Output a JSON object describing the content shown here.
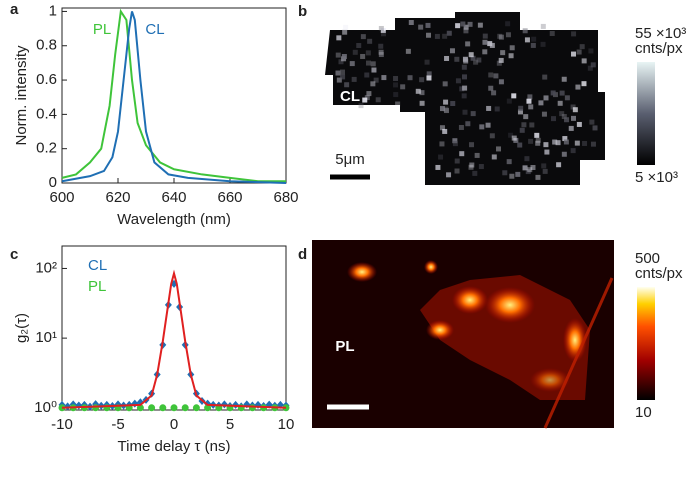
{
  "chart_data": [
    {
      "type": "line",
      "panel": "a",
      "xlabel": "Wavelength (nm)",
      "ylabel": "Norm. intensity",
      "xlim": [
        600,
        680
      ],
      "xticks": [
        600,
        620,
        640,
        660,
        680
      ],
      "ylim": [
        0,
        1.02
      ],
      "yticks": [
        0,
        0.2,
        0.4,
        0.6,
        0.8,
        1
      ],
      "series": [
        {
          "name": "PL",
          "color": "#3fc43a",
          "x": [
            600,
            605,
            610,
            614,
            617,
            619,
            621,
            623,
            625,
            627,
            630,
            635,
            640,
            650,
            660,
            670,
            680
          ],
          "values": [
            0.03,
            0.05,
            0.12,
            0.2,
            0.45,
            0.75,
            1.0,
            0.95,
            0.6,
            0.35,
            0.22,
            0.12,
            0.08,
            0.05,
            0.03,
            0.01,
            0.01
          ]
        },
        {
          "name": "CL",
          "color": "#1f6fb4",
          "x": [
            600,
            610,
            615,
            618,
            620,
            622,
            624,
            625,
            626,
            628,
            630,
            633,
            638,
            645,
            660,
            680
          ],
          "values": [
            0.01,
            0.04,
            0.07,
            0.15,
            0.3,
            0.6,
            0.9,
            1.0,
            0.95,
            0.6,
            0.3,
            0.12,
            0.05,
            0.03,
            0.01,
            0.0
          ]
        }
      ]
    },
    {
      "type": "image",
      "panel": "b",
      "label": "CL",
      "scalebar": "5μm",
      "colorbar_label": "cnts/px",
      "clim": [
        5000,
        55000
      ],
      "cticks": [
        {
          "value": 5000,
          "label": "5 ×10³"
        },
        {
          "value": 55000,
          "label": "55 ×10³"
        }
      ]
    },
    {
      "type": "line",
      "panel": "c",
      "xlabel": "Time delay τ (ns)",
      "ylabel": "g₂(τ)",
      "log_y": true,
      "xlim": [
        -10,
        10
      ],
      "xticks": [
        -10,
        -5,
        0,
        5,
        10
      ],
      "ylim": [
        0.93,
        210
      ],
      "yticks": [
        {
          "value": 1,
          "label": "10⁰"
        },
        {
          "value": 10,
          "label": "10¹"
        },
        {
          "value": 100,
          "label": "10²"
        }
      ],
      "series": [
        {
          "name": "CL",
          "color": "#1f6fb4",
          "marker": "diamond",
          "x": [
            -10,
            -9.5,
            -9,
            -8.5,
            -8,
            -7.5,
            -7,
            -6.5,
            -6,
            -5.5,
            -5,
            -4.5,
            -4,
            -3.5,
            -3,
            -2.5,
            -2,
            -1.5,
            -1,
            -0.5,
            0,
            0.5,
            1,
            1.5,
            2,
            2.5,
            3,
            3.5,
            4,
            4.5,
            5,
            5.5,
            6,
            6.5,
            7,
            7.5,
            8,
            8.5,
            9,
            9.5,
            10
          ],
          "values": [
            1.1,
            1.05,
            1.12,
            1.08,
            1.1,
            1.04,
            1.13,
            1.07,
            1.1,
            1.06,
            1.12,
            1.08,
            1.1,
            1.15,
            1.2,
            1.3,
            1.6,
            3,
            8,
            30,
            60,
            28,
            8,
            3,
            1.6,
            1.25,
            1.15,
            1.1,
            1.08,
            1.12,
            1.06,
            1.1,
            1.05,
            1.12,
            1.08,
            1.1,
            1.06,
            1.11,
            1.07,
            1.1,
            1.08
          ]
        },
        {
          "name": "PL",
          "color": "#3fc43a",
          "marker": "circle",
          "x": [
            -10,
            -9,
            -8,
            -7,
            -6,
            -5,
            -4,
            -3,
            -2,
            -1,
            0,
            1,
            2,
            3,
            4,
            5,
            6,
            7,
            8,
            9,
            10
          ],
          "values": [
            1,
            1,
            1,
            1,
            1,
            1,
            1,
            1,
            1,
            1,
            1,
            1,
            1,
            1,
            1,
            1,
            1,
            1,
            1,
            1,
            1
          ]
        },
        {
          "color": "#e02020",
          "x": [
            -10,
            -3,
            -2,
            -1.5,
            -1,
            -0.75,
            -0.5,
            -0.25,
            0,
            0.25,
            0.5,
            0.75,
            1,
            1.5,
            2,
            3,
            10
          ],
          "values": [
            1,
            1.1,
            1.5,
            3,
            9,
            17,
            32,
            60,
            85,
            60,
            32,
            17,
            9,
            3,
            1.5,
            1.1,
            1
          ]
        }
      ]
    },
    {
      "type": "image",
      "panel": "d",
      "label": "PL",
      "colorbar_label": "cnts/px",
      "clim": [
        10,
        500
      ],
      "cticks": [
        10,
        500
      ]
    }
  ]
}
